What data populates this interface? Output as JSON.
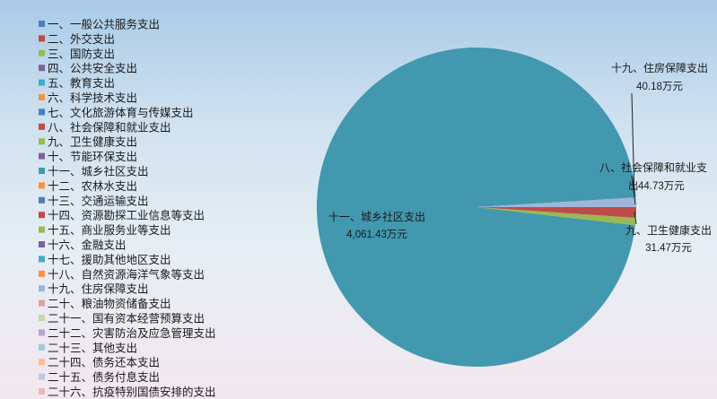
{
  "chart_data": {
    "type": "pie",
    "title": "",
    "legend_position": "left",
    "unit": "万元",
    "categories": [
      "一、一般公共服务支出",
      "二、外交支出",
      "三、国防支出",
      "四、公共安全支出",
      "五、教育支出",
      "六、科学技术支出",
      "七、文化旅游体育与传媒支出",
      "八、社会保障和就业支出",
      "九、卫生健康支出",
      "十、节能环保支出",
      "十一、城乡社区支出",
      "十二、农林水支出",
      "十三、交通运输支出",
      "十四、资源勘探工业信息等支出",
      "十五、商业服务业等支出",
      "十六、金融支出",
      "十七、援助其他地区支出",
      "十八、自然资源海洋气象等支出",
      "十九、住房保障支出",
      "二十、粮油物资储备支出",
      "二十一、国有资本经营预算支出",
      "二十二、灾害防治及应急管理支出",
      "二十三、其他支出",
      "二十四、债务还本支出",
      "二十五、债务付息支出",
      "二十六、抗疫特别国债安排的支出"
    ],
    "values": [
      0,
      0,
      0,
      0,
      0,
      0,
      0,
      44.73,
      31.47,
      0,
      4061.43,
      0,
      0,
      0,
      0,
      0,
      0,
      0,
      40.18,
      0,
      0,
      0,
      0,
      0,
      0,
      0
    ],
    "colors": [
      "#4a7ebb",
      "#be4b48",
      "#98b954",
      "#7d60a0",
      "#46aac5",
      "#f69240",
      "#4a7ebb",
      "#be4b48",
      "#98b954",
      "#7d60a0",
      "#4198af",
      "#f69240",
      "#4a7ebb",
      "#be4b48",
      "#98b954",
      "#7d60a0",
      "#46aac5",
      "#f69240",
      "#a0b6d9",
      "#dca1a0",
      "#c5d9a1",
      "#b3a6c7",
      "#9dcbdb",
      "#f7bd9b",
      "#b9c9e4",
      "#e4b8b7"
    ],
    "data_labels": [
      {
        "name": "十一、城乡社区支出",
        "value": "4,061.43万元"
      },
      {
        "name": "十九、住房保障支出",
        "value": "40.18万元"
      },
      {
        "name": "八、社会保障和就业支",
        "name2": "出",
        "value": "44.73万元"
      },
      {
        "name": "九、卫生健康支出",
        "value": "31.47万元"
      }
    ]
  }
}
